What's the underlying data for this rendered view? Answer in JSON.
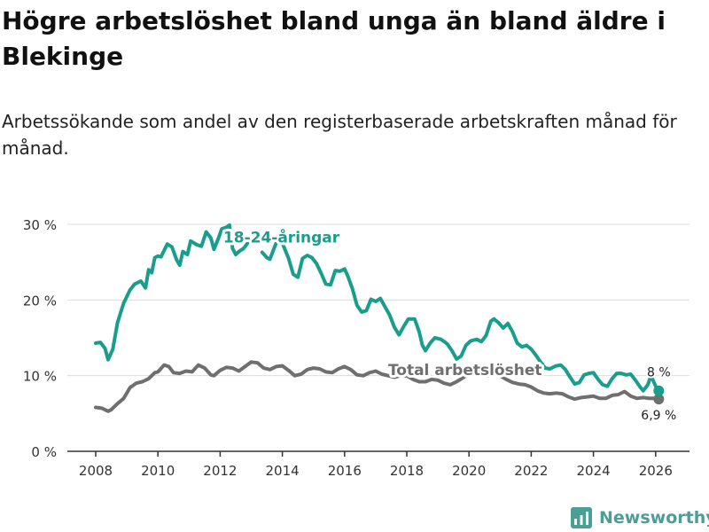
{
  "title": "Högre arbetslöshet bland unga än bland äldre i Blekinge",
  "subtitle": "Arbetssökande som andel av den registerbaserade arbetskraften månad för månad.",
  "brand": {
    "name": "Newsworthy",
    "icon": "bar-chart-logo-icon",
    "color": "#4a9e96"
  },
  "chart_data": {
    "type": "line",
    "ylim": [
      0,
      30
    ],
    "xlim": [
      2007.5,
      2027
    ],
    "y_ticks": [
      {
        "value": 0,
        "label": "0 %"
      },
      {
        "value": 10,
        "label": "10 %"
      },
      {
        "value": 20,
        "label": "20 %"
      },
      {
        "value": 30,
        "label": "30 %"
      }
    ],
    "x_ticks": [
      {
        "value": 2008,
        "label": "2008"
      },
      {
        "value": 2010,
        "label": "2010"
      },
      {
        "value": 2012,
        "label": "2012"
      },
      {
        "value": 2014,
        "label": "2014"
      },
      {
        "value": 2016,
        "label": "2016"
      },
      {
        "value": 2018,
        "label": "2018"
      },
      {
        "value": 2020,
        "label": "2020"
      },
      {
        "value": 2022,
        "label": "2022"
      },
      {
        "value": 2024,
        "label": "2024"
      },
      {
        "value": 2026,
        "label": "2026"
      }
    ],
    "series": [
      {
        "name": "Total arbetslöshet",
        "label": "Total arbetslöshet",
        "label_x": 2017.4,
        "label_y": 10.1,
        "color": "#6f6f6f",
        "end_label": "6,9 %",
        "points": [
          [
            2008.0,
            5.8
          ],
          [
            2008.2,
            5.7
          ],
          [
            2008.4,
            5.3
          ],
          [
            2008.5,
            5.5
          ],
          [
            2008.7,
            6.3
          ],
          [
            2008.9,
            7.0
          ],
          [
            2009.1,
            8.4
          ],
          [
            2009.3,
            9.0
          ],
          [
            2009.5,
            9.2
          ],
          [
            2009.7,
            9.6
          ],
          [
            2009.9,
            10.4
          ],
          [
            2010.0,
            10.5
          ],
          [
            2010.2,
            11.4
          ],
          [
            2010.35,
            11.2
          ],
          [
            2010.5,
            10.4
          ],
          [
            2010.7,
            10.3
          ],
          [
            2010.9,
            10.6
          ],
          [
            2011.1,
            10.5
          ],
          [
            2011.3,
            11.4
          ],
          [
            2011.5,
            11.0
          ],
          [
            2011.7,
            10.1
          ],
          [
            2011.8,
            10.0
          ],
          [
            2012.0,
            10.7
          ],
          [
            2012.2,
            11.1
          ],
          [
            2012.4,
            11.0
          ],
          [
            2012.6,
            10.6
          ],
          [
            2012.8,
            11.2
          ],
          [
            2013.0,
            11.8
          ],
          [
            2013.2,
            11.7
          ],
          [
            2013.4,
            11.0
          ],
          [
            2013.6,
            10.8
          ],
          [
            2013.8,
            11.2
          ],
          [
            2014.0,
            11.3
          ],
          [
            2014.2,
            10.7
          ],
          [
            2014.4,
            10.0
          ],
          [
            2014.6,
            10.2
          ],
          [
            2014.8,
            10.8
          ],
          [
            2015.0,
            11.0
          ],
          [
            2015.2,
            10.9
          ],
          [
            2015.4,
            10.5
          ],
          [
            2015.6,
            10.4
          ],
          [
            2015.8,
            10.9
          ],
          [
            2016.0,
            11.2
          ],
          [
            2016.2,
            10.8
          ],
          [
            2016.4,
            10.1
          ],
          [
            2016.6,
            10.0
          ],
          [
            2016.8,
            10.4
          ],
          [
            2017.0,
            10.6
          ],
          [
            2017.2,
            10.2
          ],
          [
            2017.4,
            10.0
          ],
          [
            2017.6,
            9.8
          ],
          [
            2017.8,
            10.0
          ],
          [
            2018.0,
            10.0
          ],
          [
            2018.2,
            9.5
          ],
          [
            2018.4,
            9.2
          ],
          [
            2018.6,
            9.2
          ],
          [
            2018.8,
            9.5
          ],
          [
            2019.0,
            9.4
          ],
          [
            2019.2,
            9.0
          ],
          [
            2019.4,
            8.8
          ],
          [
            2019.6,
            9.2
          ],
          [
            2019.8,
            9.7
          ],
          [
            2020.0,
            10.3
          ],
          [
            2020.2,
            10.4
          ],
          [
            2020.4,
            10.1
          ],
          [
            2020.6,
            10.0
          ],
          [
            2020.8,
            10.3
          ],
          [
            2021.0,
            10.0
          ],
          [
            2021.2,
            9.5
          ],
          [
            2021.4,
            9.1
          ],
          [
            2021.6,
            8.9
          ],
          [
            2021.8,
            8.8
          ],
          [
            2022.0,
            8.5
          ],
          [
            2022.2,
            8.0
          ],
          [
            2022.4,
            7.7
          ],
          [
            2022.6,
            7.6
          ],
          [
            2022.8,
            7.7
          ],
          [
            2023.0,
            7.6
          ],
          [
            2023.2,
            7.2
          ],
          [
            2023.4,
            6.9
          ],
          [
            2023.6,
            7.1
          ],
          [
            2023.8,
            7.2
          ],
          [
            2024.0,
            7.3
          ],
          [
            2024.2,
            7.0
          ],
          [
            2024.4,
            7.0
          ],
          [
            2024.6,
            7.4
          ],
          [
            2024.8,
            7.5
          ],
          [
            2025.0,
            7.9
          ],
          [
            2025.2,
            7.3
          ],
          [
            2025.4,
            7.0
          ],
          [
            2025.6,
            7.1
          ],
          [
            2025.8,
            7.0
          ],
          [
            2026.0,
            7.0
          ],
          [
            2026.1,
            6.9
          ]
        ]
      },
      {
        "name": "18-24-åringar",
        "label": "18-24-åringar",
        "label_x": 2012.1,
        "label_y": 27.6,
        "color": "#1a9e8c",
        "end_label": "8 %",
        "points": [
          [
            2008.0,
            14.3
          ],
          [
            2008.15,
            14.4
          ],
          [
            2008.3,
            13.6
          ],
          [
            2008.4,
            12.1
          ],
          [
            2008.55,
            13.5
          ],
          [
            2008.7,
            17.0
          ],
          [
            2008.9,
            19.6
          ],
          [
            2009.1,
            21.3
          ],
          [
            2009.25,
            22.1
          ],
          [
            2009.45,
            22.5
          ],
          [
            2009.6,
            21.6
          ],
          [
            2009.7,
            24.0
          ],
          [
            2009.8,
            23.6
          ],
          [
            2009.9,
            25.6
          ],
          [
            2010.0,
            25.8
          ],
          [
            2010.1,
            25.7
          ],
          [
            2010.3,
            27.4
          ],
          [
            2010.45,
            27.0
          ],
          [
            2010.6,
            25.3
          ],
          [
            2010.7,
            24.6
          ],
          [
            2010.8,
            26.4
          ],
          [
            2010.95,
            26.0
          ],
          [
            2011.05,
            27.8
          ],
          [
            2011.25,
            27.3
          ],
          [
            2011.4,
            27.1
          ],
          [
            2011.55,
            29.0
          ],
          [
            2011.7,
            28.2
          ],
          [
            2011.8,
            26.7
          ],
          [
            2011.95,
            28.2
          ],
          [
            2012.05,
            29.4
          ],
          [
            2012.2,
            29.6
          ],
          [
            2012.3,
            29.9
          ],
          [
            2012.4,
            26.8
          ],
          [
            2012.5,
            26.0
          ],
          [
            2012.6,
            26.4
          ],
          [
            2012.75,
            26.8
          ],
          [
            2012.9,
            27.6
          ],
          [
            2013.0,
            28.4
          ],
          [
            2013.1,
            28.7
          ]
        ],
        "points_after_label": [
          [
            2013.35,
            26.3
          ],
          [
            2013.5,
            25.6
          ],
          [
            2013.6,
            25.4
          ],
          [
            2013.75,
            27.0
          ],
          [
            2013.9,
            28.5
          ],
          [
            2014.05,
            27.0
          ],
          [
            2014.2,
            25.5
          ],
          [
            2014.35,
            23.4
          ],
          [
            2014.5,
            23.0
          ],
          [
            2014.65,
            25.5
          ],
          [
            2014.8,
            25.9
          ],
          [
            2014.95,
            25.6
          ],
          [
            2015.1,
            24.8
          ],
          [
            2015.25,
            23.5
          ],
          [
            2015.4,
            22.1
          ],
          [
            2015.55,
            22.0
          ],
          [
            2015.7,
            23.9
          ],
          [
            2015.85,
            23.8
          ],
          [
            2016.0,
            24.1
          ],
          [
            2016.1,
            23.2
          ],
          [
            2016.25,
            21.5
          ],
          [
            2016.4,
            19.3
          ],
          [
            2016.55,
            18.4
          ],
          [
            2016.7,
            18.6
          ],
          [
            2016.85,
            20.1
          ],
          [
            2017.0,
            19.8
          ],
          [
            2017.15,
            20.2
          ],
          [
            2017.3,
            19.1
          ],
          [
            2017.45,
            18.0
          ],
          [
            2017.6,
            16.4
          ],
          [
            2017.75,
            15.4
          ],
          [
            2017.9,
            16.5
          ],
          [
            2018.05,
            17.5
          ],
          [
            2018.25,
            17.5
          ],
          [
            2018.4,
            15.8
          ],
          [
            2018.5,
            14.0
          ],
          [
            2018.6,
            13.3
          ],
          [
            2018.75,
            14.3
          ],
          [
            2018.9,
            15.0
          ],
          [
            2019.1,
            14.8
          ],
          [
            2019.3,
            14.2
          ],
          [
            2019.45,
            13.3
          ],
          [
            2019.6,
            12.2
          ],
          [
            2019.75,
            12.6
          ],
          [
            2019.9,
            14.0
          ],
          [
            2020.05,
            14.6
          ],
          [
            2020.25,
            14.8
          ],
          [
            2020.4,
            14.5
          ],
          [
            2020.55,
            15.3
          ],
          [
            2020.7,
            17.2
          ],
          [
            2020.8,
            17.5
          ],
          [
            2020.95,
            17.0
          ],
          [
            2021.1,
            16.3
          ],
          [
            2021.25,
            16.9
          ],
          [
            2021.4,
            15.8
          ],
          [
            2021.55,
            14.3
          ],
          [
            2021.7,
            13.8
          ],
          [
            2021.85,
            14.0
          ],
          [
            2022.0,
            13.5
          ],
          [
            2022.15,
            12.7
          ],
          [
            2022.3,
            11.8
          ],
          [
            2022.45,
            11.0
          ],
          [
            2022.6,
            10.9
          ],
          [
            2022.8,
            11.3
          ],
          [
            2022.95,
            11.4
          ],
          [
            2023.1,
            10.8
          ],
          [
            2023.25,
            9.8
          ],
          [
            2023.4,
            8.9
          ],
          [
            2023.55,
            9.1
          ],
          [
            2023.7,
            10.1
          ],
          [
            2023.85,
            10.3
          ],
          [
            2024.0,
            10.4
          ],
          [
            2024.15,
            9.5
          ],
          [
            2024.3,
            8.8
          ],
          [
            2024.45,
            8.6
          ],
          [
            2024.6,
            9.6
          ],
          [
            2024.75,
            10.3
          ],
          [
            2024.9,
            10.3
          ],
          [
            2025.05,
            10.1
          ],
          [
            2025.2,
            10.2
          ],
          [
            2025.35,
            9.4
          ],
          [
            2025.5,
            8.5
          ],
          [
            2025.6,
            8.0
          ],
          [
            2025.75,
            8.8
          ],
          [
            2025.85,
            10.0
          ],
          [
            2026.0,
            8.6
          ],
          [
            2026.1,
            8.0
          ]
        ]
      }
    ]
  }
}
